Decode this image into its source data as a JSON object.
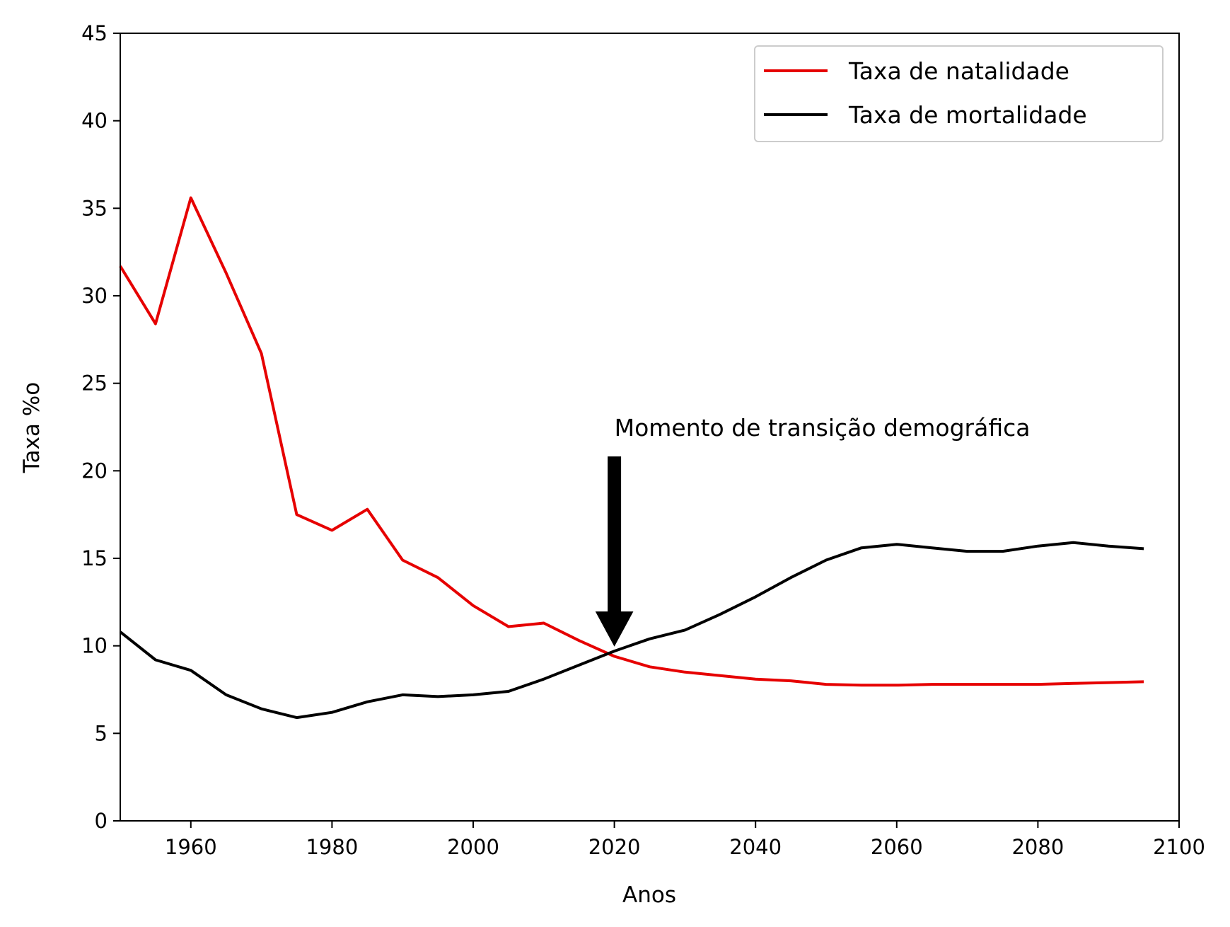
{
  "chart_data": {
    "type": "line",
    "title": "",
    "xlabel": "Anos",
    "ylabel": "Taxa %o",
    "xlim": [
      1950,
      2100
    ],
    "ylim": [
      0,
      45
    ],
    "xticks": [
      1960,
      1980,
      2000,
      2020,
      2040,
      2060,
      2080,
      2100
    ],
    "yticks": [
      0,
      5,
      10,
      15,
      20,
      25,
      30,
      35,
      40,
      45
    ],
    "grid": false,
    "legend_position": "top-right",
    "x": [
      1950,
      1955,
      1960,
      1965,
      1970,
      1975,
      1980,
      1985,
      1990,
      1995,
      2000,
      2005,
      2010,
      2015,
      2020,
      2025,
      2030,
      2035,
      2040,
      2045,
      2050,
      2055,
      2060,
      2065,
      2070,
      2075,
      2080,
      2085,
      2090,
      2095
    ],
    "series": [
      {
        "name": "Taxa de natalidade",
        "color": "#e60000",
        "values": [
          31.7,
          28.4,
          35.6,
          31.3,
          26.7,
          17.5,
          16.6,
          17.8,
          14.9,
          13.9,
          12.3,
          11.1,
          11.3,
          10.3,
          9.4,
          8.8,
          8.5,
          8.3,
          8.1,
          8.0,
          7.8,
          7.75,
          7.75,
          7.8,
          7.8,
          7.8,
          7.8,
          7.85,
          7.9,
          7.95
        ]
      },
      {
        "name": "Taxa de mortalidade",
        "color": "#000000",
        "values": [
          10.8,
          9.2,
          8.6,
          7.2,
          6.4,
          5.9,
          6.2,
          6.8,
          7.2,
          7.1,
          7.2,
          7.4,
          8.1,
          8.9,
          9.7,
          10.4,
          10.9,
          11.8,
          12.8,
          13.9,
          14.9,
          15.6,
          15.8,
          15.6,
          15.4,
          15.4,
          15.7,
          15.9,
          15.7,
          15.55
        ]
      }
    ],
    "annotation": {
      "text": "Momento de transição demográfica",
      "arrow_from": [
        2020,
        20.8
      ],
      "arrow_to": [
        2020,
        10.0
      ],
      "text_at": [
        2020,
        22.0
      ]
    }
  }
}
